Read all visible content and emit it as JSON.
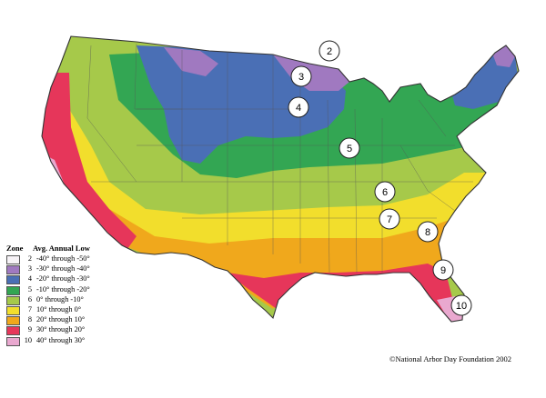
{
  "map": {
    "colors": {
      "zone2": "#f7f3f7",
      "zone3": "#a079c0",
      "zone4": "#4a6fb5",
      "zone5": "#33a653",
      "zone6": "#a6c94a",
      "zone7": "#f2de2c",
      "zone8": "#f0a81c",
      "zone9": "#e6365a",
      "zone10": "#e9a8cf",
      "border": "#333333"
    },
    "zone_badges": [
      "2",
      "3",
      "4",
      "5",
      "6",
      "7",
      "8",
      "9",
      "10"
    ]
  },
  "legend": {
    "zone_header": "Zone",
    "range_header": "Avg. Annual Low",
    "rows": [
      {
        "zone": "2",
        "range": "-40° through -50°",
        "color": "#f7f3f7"
      },
      {
        "zone": "3",
        "range": "-30° through -40°",
        "color": "#a079c0"
      },
      {
        "zone": "4",
        "range": "-20° through -30°",
        "color": "#4a6fb5"
      },
      {
        "zone": "5",
        "range": "-10° through -20°",
        "color": "#33a653"
      },
      {
        "zone": "6",
        "range": "0° through -10°",
        "color": "#a6c94a"
      },
      {
        "zone": "7",
        "range": "10° through 0°",
        "color": "#f2de2c"
      },
      {
        "zone": "8",
        "range": "20° through 10°",
        "color": "#f0a81c"
      },
      {
        "zone": "9",
        "range": "30° through 20°",
        "color": "#e6365a"
      },
      {
        "zone": "10",
        "range": "40° through 30°",
        "color": "#e9a8cf"
      }
    ]
  },
  "credit": "©National Arbor Day Foundation 2002"
}
